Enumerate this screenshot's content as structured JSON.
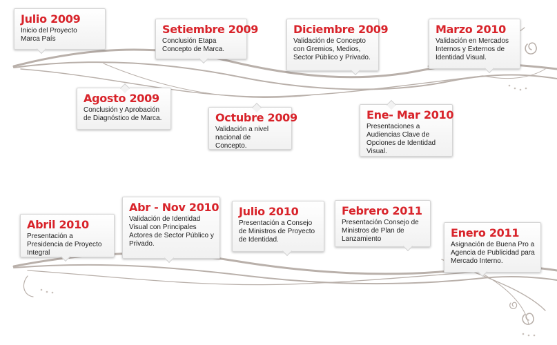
{
  "colors": {
    "accent": "#d8232a",
    "text": "#222222",
    "line": "#b9b0aa"
  },
  "top_row": [
    {
      "date": "Julio 2009",
      "desc": "Inicio del Proyecto Marca País"
    },
    {
      "date": "Agosto 2009",
      "desc": "Conclusión y Aprobación de Diagnóstico de Marca."
    },
    {
      "date": "Setiembre 2009",
      "desc": "Conclusión Etapa Concepto de Marca."
    },
    {
      "date": "Octubre 2009",
      "desc": "Validación a nivel nacional de Concepto."
    },
    {
      "date": "Diciembre 2009",
      "desc": "Validación de Concepto con Gremios, Medios, Sector Público y Privado."
    },
    {
      "date": "Ene- Mar 2010",
      "desc": "Presentaciones a Audiencias Clave de Opciones de Identidad Visual."
    },
    {
      "date": "Marzo 2010",
      "desc": "Validación en Mercados Internos y Externos de Identidad Visual."
    }
  ],
  "bottom_row": [
    {
      "date": "Abril 2010",
      "desc": "Presentación a Presidencia de Proyecto Integral"
    },
    {
      "date": "Abr - Nov 2010",
      "desc": "Validación de Identidad Visual con Principales Actores de Sector Público y Privado."
    },
    {
      "date": "Julio 2010",
      "desc": "Presentación a Consejo de Ministros de Proyecto de Identidad."
    },
    {
      "date": "Febrero 2011",
      "desc": "Presentación Consejo de Ministros de Plan de Lanzamiento"
    },
    {
      "date": "Enero 2011",
      "desc": "Asignación de Buena Pro a Agencia de Publicidad para Mercado Interno."
    }
  ]
}
